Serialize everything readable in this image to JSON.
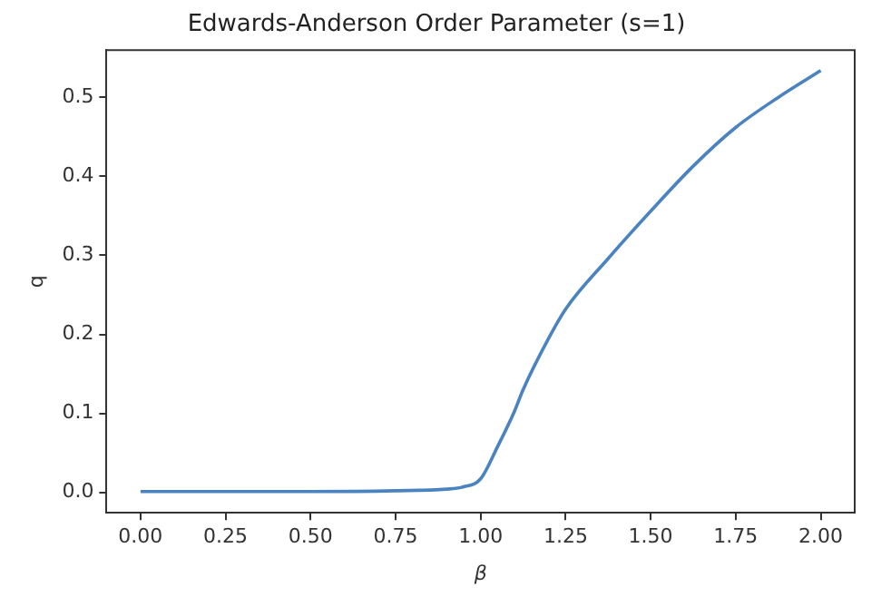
{
  "chart_data": {
    "type": "line",
    "title": "Edwards-Anderson Order Parameter (s=1)",
    "xlabel": "β",
    "ylabel": "q",
    "x": [
      0,
      0.25,
      0.5,
      0.75,
      0.9,
      0.95,
      1.0,
      1.05,
      1.1,
      1.125,
      1.2,
      1.25,
      1.375,
      1.5,
      1.625,
      1.75,
      1.875,
      2.0
    ],
    "series": [
      {
        "color": "#4a83c0",
        "values": [
          0.001,
          0.001,
          0.001,
          0.002,
          0.004,
          0.007,
          0.017,
          0.058,
          0.103,
          0.13,
          0.195,
          0.232,
          0.296,
          0.356,
          0.413,
          0.462,
          0.5,
          0.534
        ]
      }
    ],
    "xlim": [
      -0.1,
      2.1
    ],
    "ylim": [
      -0.026,
      0.56
    ],
    "xticks": [
      {
        "value": 0,
        "label": "0.00"
      },
      {
        "value": 0.25,
        "label": "0.25"
      },
      {
        "value": 0.5,
        "label": "0.50"
      },
      {
        "value": 0.75,
        "label": "0.75"
      },
      {
        "value": 1,
        "label": "1.00"
      },
      {
        "value": 1.25,
        "label": "1.25"
      },
      {
        "value": 1.5,
        "label": "1.50"
      },
      {
        "value": 1.75,
        "label": "1.75"
      },
      {
        "value": 2,
        "label": "2.00"
      }
    ],
    "yticks": [
      {
        "value": 0,
        "label": "0.0"
      },
      0.1,
      0.2,
      0.3,
      0.4,
      0.5
    ],
    "grid": false,
    "legend": false,
    "marker": "none",
    "line_style": "solid"
  }
}
